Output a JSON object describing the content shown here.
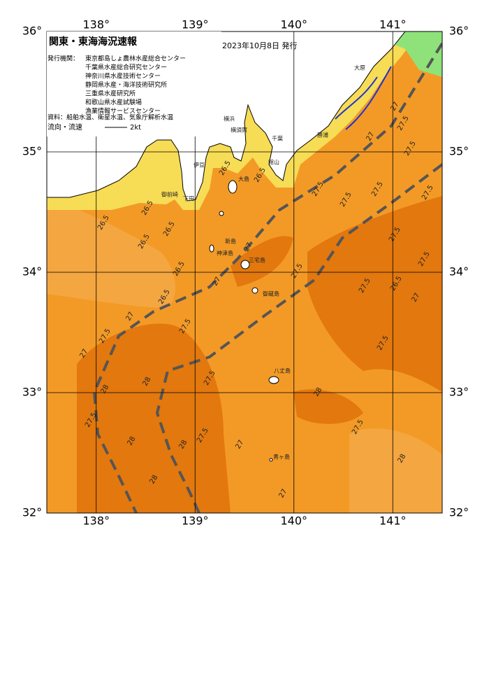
{
  "header": {
    "title": "関東・東海海況速報",
    "date": "2023年10月8日 発行"
  },
  "issuers": {
    "label": "発行機関：",
    "names": [
      "東京都島しょ農林水産総合センター",
      "千葉県水産総合研究センター",
      "神奈川県水産技術センター",
      "静岡県水産・海洋技術研究所",
      "三重県水産研究所",
      "和歌山県水産試験場",
      "漁業情報サービスセンター"
    ]
  },
  "source": "資料：船舶水温、衛星水温、気象庁解析水温",
  "legend": {
    "label": "流向・流速",
    "speed": "2kt"
  },
  "map": {
    "xlim": [
      137.5,
      141.5
    ],
    "ylim": [
      32,
      36
    ],
    "lon_ticks": [
      {
        "value": 138,
        "label": "138°"
      },
      {
        "value": 139,
        "label": "139°"
      },
      {
        "value": 140,
        "label": "140°"
      },
      {
        "value": 141,
        "label": "141°"
      }
    ],
    "lat_ticks": [
      {
        "value": 36,
        "label": "36°"
      },
      {
        "value": 35,
        "label": "35°"
      },
      {
        "value": 34,
        "label": "34°"
      },
      {
        "value": 33,
        "label": "33°"
      },
      {
        "value": 32,
        "label": "32°"
      }
    ],
    "contour_labels": [
      26.5,
      26.5,
      26.5,
      26.5,
      26.5,
      26.5,
      26.5,
      26.5,
      27,
      27,
      27,
      27,
      27.5,
      27.5,
      27.5,
      27.5,
      27.5,
      28,
      28,
      28,
      28,
      28,
      27.5,
      27.5,
      27.5,
      27.5,
      27.5,
      27.5,
      27.5,
      27.5,
      27.5,
      27.5,
      27.5,
      27.5,
      28,
      28,
      26.5,
      27,
      27,
      27,
      27,
      27
    ],
    "places": [
      "大島",
      "新島",
      "神津島",
      "三宅島",
      "御蔵島",
      "八丈島",
      "青ヶ島",
      "伊豆",
      "下田",
      "御前崎",
      "横浜",
      "横須賀",
      "千葉",
      "館山",
      "勝浦",
      "大原"
    ]
  }
}
